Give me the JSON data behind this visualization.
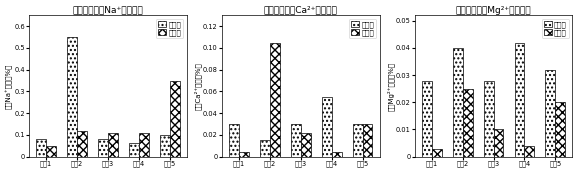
{
  "subplots": [
    {
      "title": "改良前后土壤Na⁺含量变化",
      "ylabel": "土壤Na⁺含量（%）",
      "ylim": [
        0,
        0.65
      ],
      "yticks": [
        0,
        0.1,
        0.2,
        0.3,
        0.4,
        0.5,
        0.6
      ],
      "categories": [
        "处理1",
        "处理2",
        "处理3",
        "处理4",
        "处理5"
      ],
      "before": [
        0.08,
        0.55,
        0.08,
        0.065,
        0.1
      ],
      "after": [
        0.05,
        0.12,
        0.11,
        0.11,
        0.35
      ]
    },
    {
      "title": "改良前后土壤Ca²⁺含量变化",
      "ylabel": "土壤Ca²⁺含量（%）",
      "ylim": [
        0,
        0.13
      ],
      "yticks": [
        0,
        0.02,
        0.04,
        0.06,
        0.08,
        0.1,
        0.12
      ],
      "categories": [
        "处理1",
        "处理2",
        "处理3",
        "处理4",
        "处理5"
      ],
      "before": [
        0.03,
        0.015,
        0.03,
        0.055,
        0.03
      ],
      "after": [
        0.004,
        0.105,
        0.022,
        0.004,
        0.03
      ]
    },
    {
      "title": "改良前后土壤Mg²⁺含量变化",
      "ylabel": "土壤Mg²⁺含量（%）",
      "ylim": [
        0,
        0.052
      ],
      "yticks": [
        0,
        0.01,
        0.02,
        0.03,
        0.04,
        0.05
      ],
      "categories": [
        "处理1",
        "处理2",
        "处理3",
        "处理4",
        "处理5"
      ],
      "before": [
        0.028,
        0.04,
        0.028,
        0.042,
        0.032
      ],
      "after": [
        0.003,
        0.025,
        0.01,
        0.004,
        0.02
      ]
    }
  ],
  "legend_labels": [
    "原始土",
    "改良后"
  ],
  "bar_width": 0.32,
  "before_hatch": "....",
  "after_hatch": "xxxx",
  "title_fontsize": 6.5,
  "label_fontsize": 5.0,
  "tick_fontsize": 4.8,
  "legend_fontsize": 5.0
}
